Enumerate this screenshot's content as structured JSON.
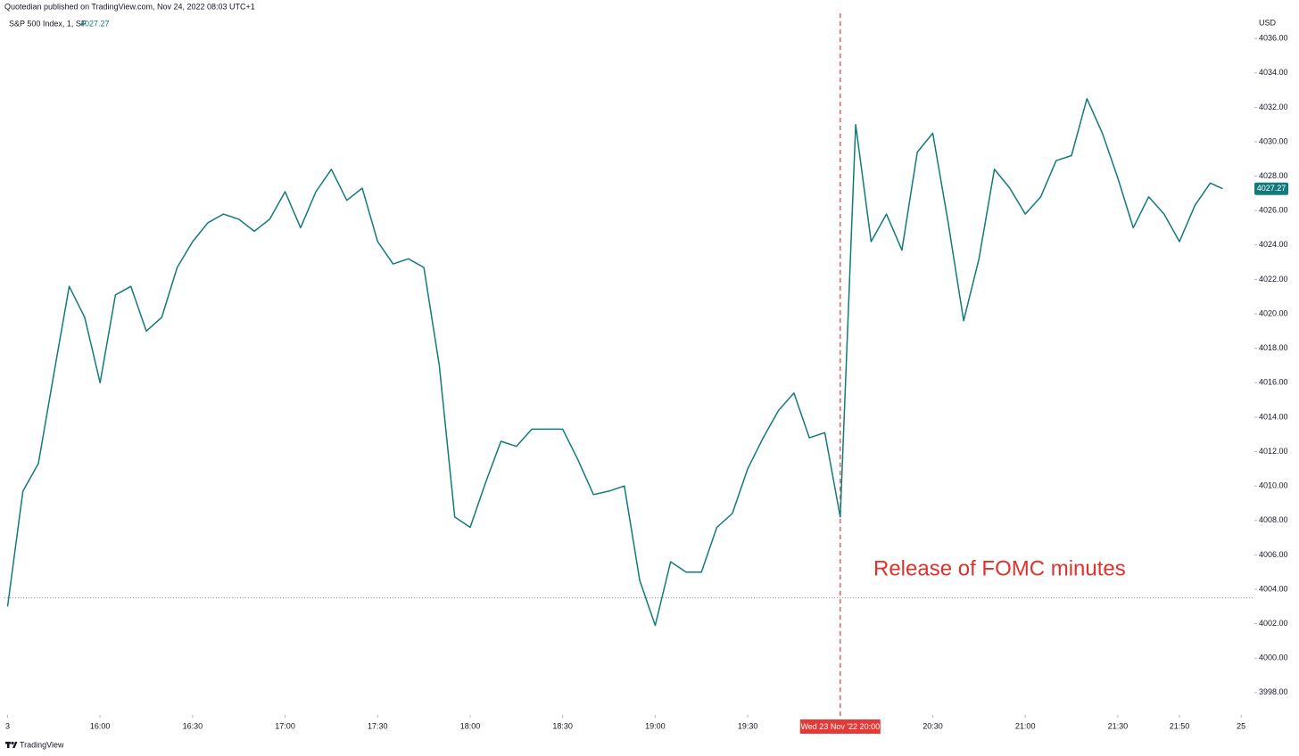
{
  "chart_data": {
    "type": "line",
    "source": "Quotedian published on TradingView.com, Nov 24, 2022 08:03 UTC+1",
    "title": "S&P 500 Index, 1, SP",
    "y_unit": "USD",
    "annotation": "Release of FOMC minutes",
    "footer": "TradingView",
    "color": "#127a7a",
    "x": [
      "15:30",
      "15:35",
      "15:40",
      "15:45",
      "15:50",
      "15:55",
      "16:00",
      "16:05",
      "16:10",
      "16:15",
      "16:20",
      "16:25",
      "16:30",
      "16:35",
      "16:40",
      "16:45",
      "16:50",
      "16:55",
      "17:00",
      "17:05",
      "17:10",
      "17:15",
      "17:20",
      "17:25",
      "17:30",
      "17:35",
      "17:40",
      "17:45",
      "17:50",
      "17:55",
      "18:00",
      "18:05",
      "18:10",
      "18:15",
      "18:20",
      "18:25",
      "18:30",
      "18:35",
      "18:40",
      "18:45",
      "18:50",
      "18:55",
      "19:00",
      "19:05",
      "19:10",
      "19:15",
      "19:20",
      "19:25",
      "19:30",
      "19:35",
      "19:40",
      "19:45",
      "19:50",
      "19:55",
      "20:00",
      "20:05",
      "20:10",
      "20:15",
      "20:20",
      "20:25",
      "20:30",
      "20:35",
      "20:40",
      "20:45",
      "20:50",
      "20:55",
      "21:00",
      "21:05",
      "21:10",
      "21:15",
      "21:20",
      "21:25",
      "21:30",
      "21:35",
      "21:40",
      "21:45",
      "21:50",
      "21:55",
      "22:00",
      "22:04"
    ],
    "values": [
      4003.0,
      4009.7,
      4011.3,
      4016.5,
      4021.6,
      4019.8,
      4016.0,
      4021.1,
      4021.6,
      4019.0,
      4019.8,
      4022.7,
      4024.2,
      4025.3,
      4025.8,
      4025.5,
      4024.8,
      4025.5,
      4027.1,
      4025.0,
      4027.1,
      4028.4,
      4026.6,
      4027.3,
      4024.2,
      4022.9,
      4023.2,
      4022.7,
      4017.0,
      4008.2,
      4007.6,
      4010.2,
      4012.6,
      4012.3,
      4013.3,
      4013.3,
      4013.3,
      4011.5,
      4009.5,
      4009.7,
      4010.0,
      4004.5,
      4001.9,
      4005.6,
      4005.0,
      4005.0,
      4007.6,
      4008.4,
      4011.0,
      4012.8,
      4014.4,
      4015.4,
      4012.8,
      4013.1,
      4008.2,
      4031.0,
      4024.2,
      4025.8,
      4023.7,
      4029.4,
      4030.5,
      4025.3,
      4019.6,
      4023.2,
      4028.4,
      4027.3,
      4025.8,
      4026.8,
      4028.9,
      4029.2,
      4032.5,
      4030.5,
      4027.9,
      4025.0,
      4026.8,
      4025.8,
      4024.2,
      4026.3,
      4027.6,
      4027.27
    ],
    "xlim": [
      "15:29",
      "22:14"
    ],
    "xticks": [
      {
        "value": "15:30",
        "label": "3"
      },
      "16:00",
      "16:30",
      "17:00",
      "17:30",
      "18:00",
      "18:30",
      "19:00",
      "19:30",
      "20:30",
      "21:00",
      "21:30",
      "21:50",
      {
        "value": "22:10",
        "label": "25"
      }
    ],
    "crosshair": {
      "x": "20:00",
      "label": "Wed 23 Nov '22  20:00"
    },
    "reference_line": 4003.5,
    "ylim": [
      3996.8,
      4037.2
    ],
    "yticks": [
      {
        "value": 3998,
        "label": "3998.00"
      },
      {
        "value": 4000,
        "label": "4000.00"
      },
      {
        "value": 4002,
        "label": "4002.00"
      },
      {
        "value": 4004,
        "label": "4004.00"
      },
      {
        "value": 4006,
        "label": "4006.00"
      },
      {
        "value": 4008,
        "label": "4008.00"
      },
      {
        "value": 4010,
        "label": "4010.00"
      },
      {
        "value": 4012,
        "label": "4012.00"
      },
      {
        "value": 4014,
        "label": "4014.00"
      },
      {
        "value": 4016,
        "label": "4016.00"
      },
      {
        "value": 4018,
        "label": "4018.00"
      },
      {
        "value": 4020,
        "label": "4020.00"
      },
      {
        "value": 4022,
        "label": "4022.00"
      },
      {
        "value": 4024,
        "label": "4024.00"
      },
      {
        "value": 4026,
        "label": "4026.00"
      },
      {
        "value": 4028,
        "label": "4028.00"
      },
      {
        "value": 4030,
        "label": "4030.00"
      },
      {
        "value": 4032,
        "label": "4032.00"
      },
      {
        "value": 4034,
        "label": "4034.00"
      },
      {
        "value": 4036,
        "label": "4036.00"
      }
    ],
    "grid": false
  }
}
